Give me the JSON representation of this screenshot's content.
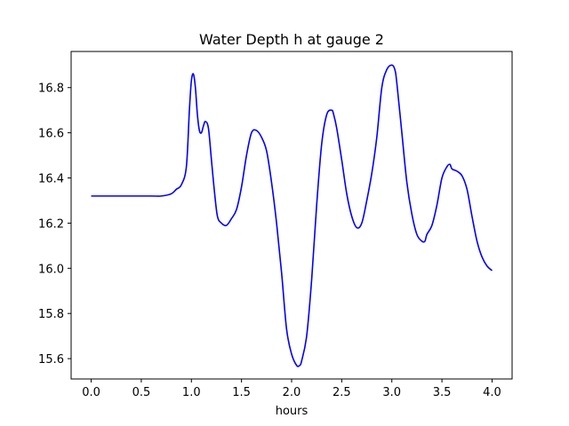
{
  "chart_data": {
    "type": "line",
    "title": "Water Depth h at gauge 2",
    "xlabel": "hours",
    "ylabel": "",
    "xlim": [
      -0.2,
      4.2
    ],
    "ylim": [
      15.51,
      16.96
    ],
    "xticks": [
      0.0,
      0.5,
      1.0,
      1.5,
      2.0,
      2.5,
      3.0,
      3.5,
      4.0
    ],
    "xtick_labels": [
      "0.0",
      "0.5",
      "1.0",
      "1.5",
      "2.0",
      "2.5",
      "3.0",
      "3.5",
      "4.0"
    ],
    "yticks": [
      15.6,
      15.8,
      16.0,
      16.2,
      16.4,
      16.6,
      16.8
    ],
    "ytick_labels": [
      "15.6",
      "15.8",
      "16.0",
      "16.2",
      "16.4",
      "16.6",
      "16.8"
    ],
    "grid": false,
    "series": [
      {
        "color": "#0000ff",
        "x": [
          0.0,
          0.3,
          0.6,
          0.7,
          0.8,
          0.85,
          0.9,
          0.95,
          0.98,
          1.0,
          1.02,
          1.04,
          1.06,
          1.08,
          1.1,
          1.12,
          1.14,
          1.17,
          1.2,
          1.23,
          1.26,
          1.3,
          1.35,
          1.4,
          1.45,
          1.5,
          1.55,
          1.6,
          1.65,
          1.7,
          1.75,
          1.8,
          1.85,
          1.9,
          1.95,
          2.0,
          2.05,
          2.08,
          2.1,
          2.15,
          2.2,
          2.25,
          2.3,
          2.35,
          2.4,
          2.42,
          2.45,
          2.5,
          2.55,
          2.6,
          2.65,
          2.7,
          2.75,
          2.8,
          2.85,
          2.9,
          2.95,
          3.0,
          3.03,
          3.05,
          3.1,
          3.15,
          3.2,
          3.25,
          3.3,
          3.33,
          3.35,
          3.4,
          3.45,
          3.5,
          3.55,
          3.58,
          3.6,
          3.65,
          3.7,
          3.75,
          3.8,
          3.85,
          3.9,
          3.95,
          4.0
        ],
        "y": [
          16.32,
          16.32,
          16.32,
          16.32,
          16.33,
          16.35,
          16.37,
          16.45,
          16.7,
          16.83,
          16.86,
          16.8,
          16.68,
          16.61,
          16.6,
          16.63,
          16.65,
          16.62,
          16.48,
          16.34,
          16.23,
          16.2,
          16.19,
          16.22,
          16.26,
          16.36,
          16.5,
          16.6,
          16.61,
          16.58,
          16.52,
          16.38,
          16.2,
          15.98,
          15.73,
          15.62,
          15.57,
          15.57,
          15.59,
          15.7,
          15.95,
          16.28,
          16.55,
          16.68,
          16.7,
          16.68,
          16.62,
          16.48,
          16.33,
          16.23,
          16.18,
          16.2,
          16.3,
          16.42,
          16.58,
          16.8,
          16.88,
          16.9,
          16.88,
          16.82,
          16.6,
          16.38,
          16.24,
          16.15,
          16.12,
          16.12,
          16.15,
          16.19,
          16.28,
          16.4,
          16.45,
          16.46,
          16.44,
          16.43,
          16.41,
          16.35,
          16.23,
          16.12,
          16.05,
          16.01,
          15.99
        ]
      }
    ]
  }
}
